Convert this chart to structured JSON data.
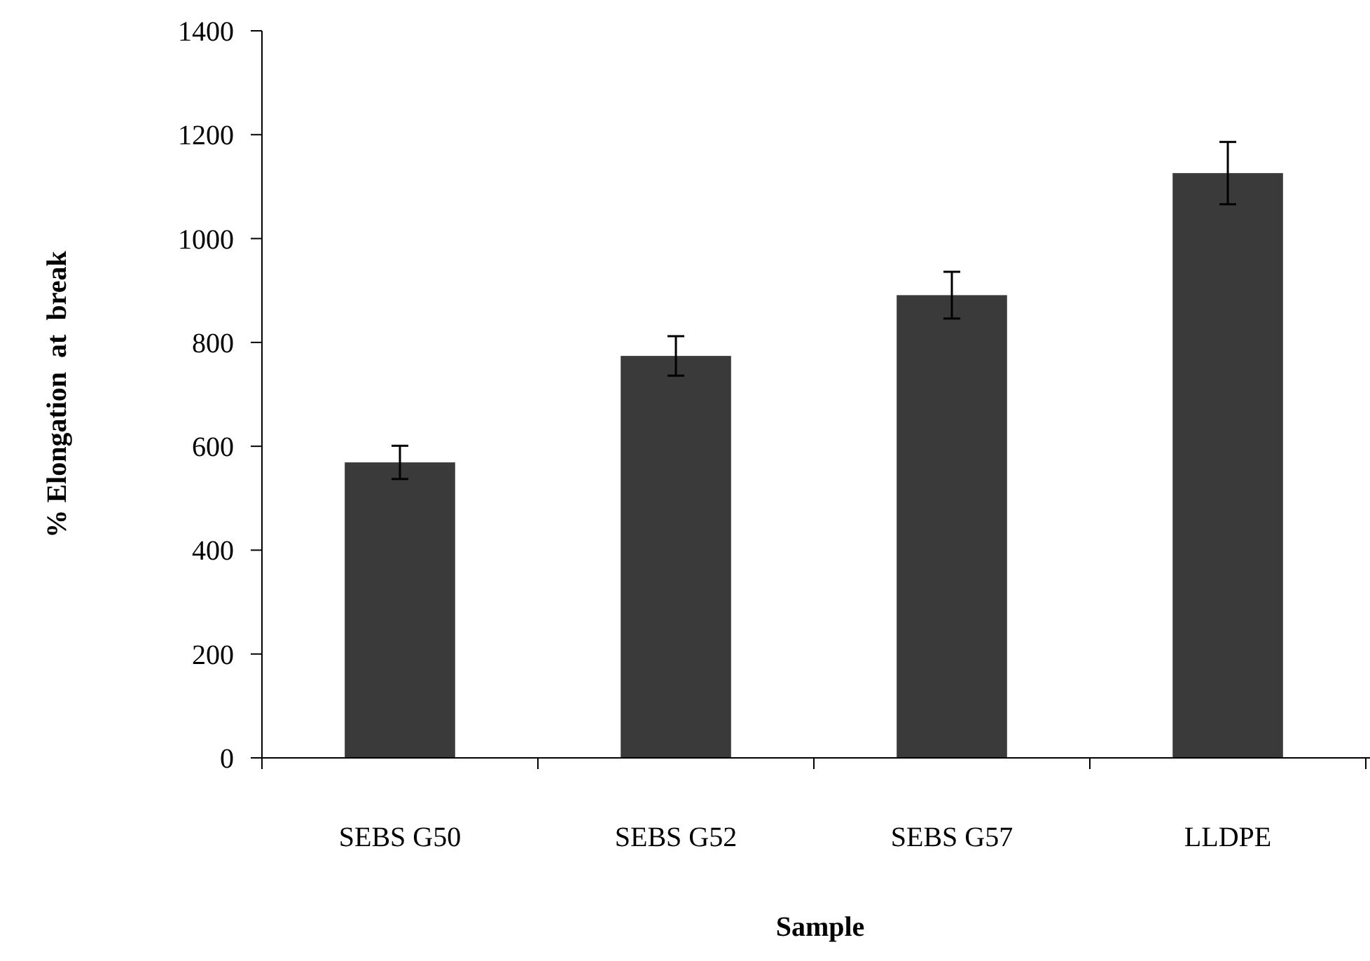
{
  "chart_data": {
    "type": "bar",
    "xlabel": "Sample",
    "ylabel": "% Elongation  at  break",
    "categories": [
      "SEBS G50",
      "SEBS G52",
      "SEBS G57",
      "LLDPE"
    ],
    "values": [
      569,
      774,
      891,
      1126
    ],
    "errors": [
      32,
      38,
      45,
      60
    ],
    "color": "#3a3a3a",
    "ylim": [
      0,
      1400
    ],
    "yticks": [
      0,
      200,
      400,
      600,
      800,
      1000,
      1200,
      1400
    ],
    "grid": false
  }
}
